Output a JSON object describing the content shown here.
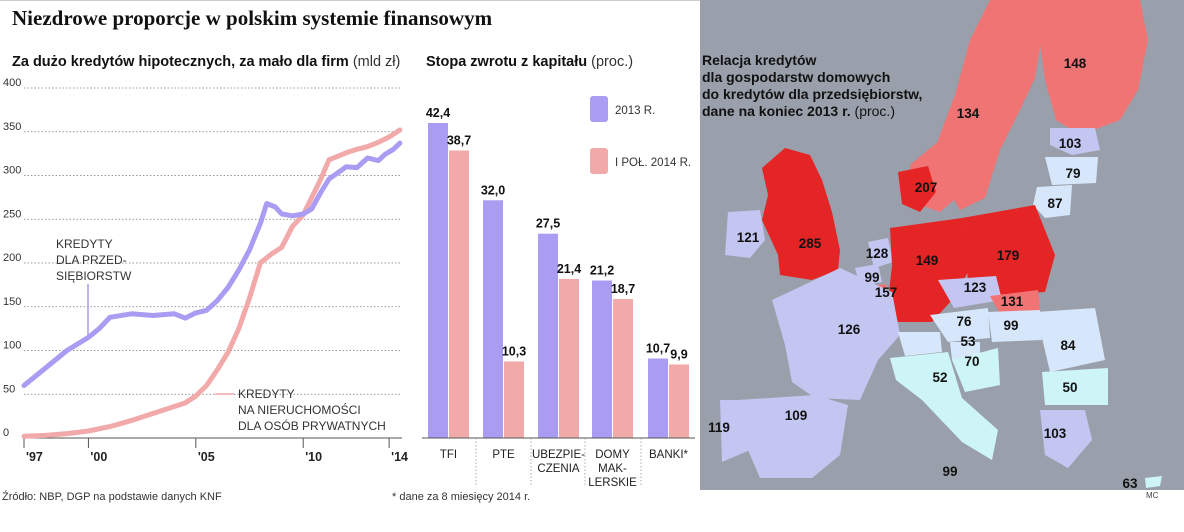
{
  "header": {
    "title": "Niezdrowe proporcje w polskim systemie finansowym"
  },
  "chart_data": [
    {
      "type": "line",
      "title": "Za dużo kredytów hipotecznych, za mało dla firm",
      "unit": "(mld zł)",
      "ylim": [
        0,
        400
      ],
      "yticks": [
        "0",
        "50",
        "100",
        "150",
        "200",
        "250",
        "300",
        "350",
        "400"
      ],
      "xlim": [
        1997,
        2014.6
      ],
      "xticks": [
        {
          "x": 1997,
          "label": "'97"
        },
        {
          "x": 2000,
          "label": "'00"
        },
        {
          "x": 2005,
          "label": "'05"
        },
        {
          "x": 2010,
          "label": "'10"
        },
        {
          "x": 2014,
          "label": "'14"
        }
      ],
      "grid": true,
      "series": [
        {
          "name_lines": [
            "KREDYTY",
            "DLA PRZEDSIĘBIORSTW"
          ],
          "label_lines": [
            "KREDYTY",
            "DLA PRZED-",
            "SIĘBIORSTW"
          ],
          "color": "#a99cf2",
          "x": [
            1997,
            1998,
            1999,
            2000,
            2000.5,
            2001,
            2002,
            2003,
            2004,
            2004.5,
            2005,
            2005.5,
            2006,
            2006.5,
            2007,
            2007.5,
            2008,
            2008.3,
            2008.7,
            2009,
            2009.5,
            2010,
            2010.4,
            2010.8,
            2011.2,
            2011.6,
            2012,
            2012.5,
            2013,
            2013.5,
            2013.8,
            2014.2,
            2014.5
          ],
          "y": [
            60,
            80,
            100,
            115,
            125,
            138,
            142,
            140,
            142,
            137,
            143,
            146,
            157,
            172,
            192,
            215,
            245,
            268,
            264,
            256,
            254,
            256,
            262,
            280,
            296,
            303,
            310,
            309,
            320,
            317,
            324,
            330,
            337
          ]
        },
        {
          "name_lines": [
            "KREDYTY",
            "NA NIERUCHOMOŚCI",
            "DLA OSÓB PRYWATNYCH"
          ],
          "color": "#f2a9a9",
          "x": [
            1997,
            1998,
            1999,
            2000,
            2001,
            2002,
            2003,
            2003.5,
            2004,
            2004.5,
            2005,
            2005.5,
            2006,
            2006.5,
            2007,
            2007.5,
            2008,
            2008.5,
            2009,
            2009.5,
            2010,
            2010.4,
            2010.8,
            2011.2,
            2011.6,
            2012,
            2012.5,
            2013,
            2013.5,
            2014,
            2014.5
          ],
          "y": [
            2,
            3,
            5,
            8,
            13,
            20,
            28,
            32,
            36,
            40,
            48,
            60,
            78,
            98,
            125,
            160,
            200,
            210,
            218,
            242,
            255,
            275,
            295,
            318,
            322,
            326,
            330,
            333,
            338,
            344,
            352
          ]
        }
      ]
    },
    {
      "type": "bar",
      "title": "Stopa zwrotu z kapitału",
      "unit": "(proc.)",
      "category_lines": [
        [
          "TFI"
        ],
        [
          "PTE"
        ],
        [
          "UBEZPIE-",
          "CZENIA"
        ],
        [
          "DOMY",
          "MAK-",
          "LERSKIE"
        ],
        [
          "BANKI*"
        ]
      ],
      "ylim": [
        0,
        42.4
      ],
      "legend": "top-right",
      "series": [
        {
          "name": "2013 R.",
          "color": "#a99cf2",
          "values": [
            42.4,
            32.0,
            27.5,
            21.2,
            10.7
          ],
          "labels": [
            "42,4",
            "32,0",
            "27,5",
            "21,2",
            "10,7"
          ]
        },
        {
          "name": "I POŁ. 2014 R.",
          "color": "#f2a9a9",
          "values": [
            38.7,
            10.3,
            21.4,
            18.7,
            9.9
          ],
          "labels": [
            "38,7",
            "10,3",
            "21,4",
            "18,7",
            "9,9"
          ]
        }
      ]
    }
  ],
  "map": {
    "title_lines": [
      "Relacja kredytów",
      "dla gospodarstw domowych",
      "do kredytów dla przedsiębiorstw,",
      "dane na koniec 2013 r."
    ],
    "unit": "(proc.)",
    "colors": {
      "sea": "#9aa0ab",
      "high": "#e52525",
      "mid": "#f07474",
      "low": "#c4c6f2",
      "lower": "#d6e7fb",
      "lowest": "#cdf4f6"
    },
    "values": [
      "148",
      "134",
      "103",
      "79",
      "87",
      "207",
      "121",
      "285",
      "128",
      "99",
      "157",
      "149",
      "179",
      "123",
      "131",
      "126",
      "76",
      "53",
      "70",
      "99",
      "84",
      "50",
      "52",
      "109",
      "119",
      "103",
      "99",
      "63"
    ]
  },
  "footer": {
    "source": "Źródło: NBP, DGP na podstawie danych KNF",
    "footnote": "* dane za 8 miesięcy 2014 r.",
    "credit": "MC"
  }
}
